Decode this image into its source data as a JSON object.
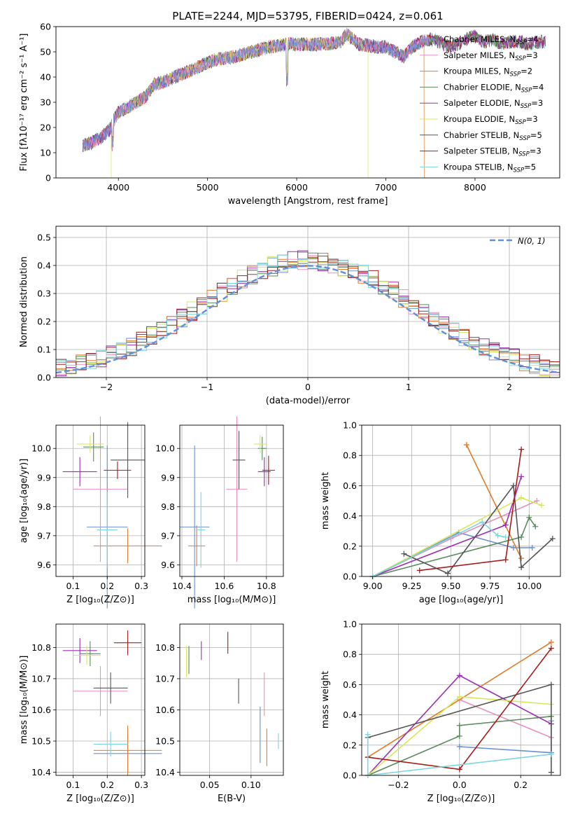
{
  "figure": {
    "title": "PLATE=2244, MJD=53795, FIBERID=0424, z=0.061"
  },
  "colors": {
    "Chabrier MILES": "#6b8fd4",
    "Salpeter MILES": "#e68fc0",
    "Kroupa MILES": "#e07b2a",
    "Chabrier ELODIE": "#5a8a5e",
    "Salpeter ELODIE": "#9a2fb0",
    "Kroupa ELODIE": "#d6e85a",
    "Chabrier STELIB": "#555555",
    "Salpeter STELIB": "#a81b1b",
    "Kroupa STELIB": "#7dd6dc",
    "normal_curve": "#6490d8"
  },
  "chart_data": [
    {
      "id": "spectrum",
      "type": "line",
      "title": "PLATE=2244, MJD=53795, FIBERID=0424, z=0.061",
      "xlabel": "wavelength [Angstrom, rest frame]",
      "ylabel": "Flux [fλ10⁻¹⁷ erg cm⁻² s⁻¹ A⁻¹]",
      "xlim": [
        3300,
        8950
      ],
      "ylim": [
        0,
        60
      ],
      "xticks": [
        4000,
        5000,
        6000,
        7000,
        8000
      ],
      "yticks": [
        0,
        10,
        20,
        30,
        40,
        50,
        60
      ],
      "x": [
        3600,
        3700,
        3800,
        3900,
        3950,
        4000,
        4100,
        4200,
        4300,
        4400,
        4500,
        4700,
        4900,
        5100,
        5300,
        5500,
        5700,
        5900,
        6100,
        6300,
        6500,
        6560,
        6700,
        6900,
        7000,
        7100,
        7200,
        7300,
        7400,
        7500,
        7600,
        7700,
        7800,
        7900,
        8000,
        8100,
        8200,
        8300,
        8400,
        8500,
        8600,
        8700,
        8800
      ],
      "y": [
        13,
        14,
        16,
        19,
        23,
        26,
        28,
        30,
        32,
        37,
        38,
        41,
        44,
        47,
        48,
        50,
        52,
        53,
        53,
        53,
        54,
        57,
        53,
        52,
        52,
        50,
        48,
        52,
        54,
        55,
        54,
        52,
        53,
        55,
        56,
        54,
        55,
        53,
        54,
        54,
        53,
        54,
        54
      ],
      "series_labels": [
        "Chabrier MILES, N",
        "Salpeter MILES, N",
        "Kroupa MILES, N",
        "Chabrier ELODIE, N",
        "Salpeter ELODIE, N",
        "Kroupa ELODIE, N",
        "Chabrier STELIB, N",
        "Salpeter STELIB, N",
        "Kroupa STELIB, N"
      ],
      "nssp": [
        "4",
        "3",
        "2",
        "4",
        "3",
        "3",
        "5",
        "3",
        "5"
      ],
      "legend": "top-right",
      "grid": false
    },
    {
      "id": "residuals",
      "type": "histogram",
      "xlabel": "(data-model)/error",
      "ylabel": "Normed distribution",
      "xlim": [
        -2.5,
        2.5
      ],
      "ylim": [
        0,
        0.54
      ],
      "xticks": [
        -2,
        -1,
        0,
        1,
        2
      ],
      "yticks": [
        0.0,
        0.1,
        0.2,
        0.3,
        0.4,
        0.5
      ],
      "bin_width": 0.1,
      "legend_label": "N(0, 1)",
      "legend": "top-right",
      "grid": true
    },
    {
      "id": "age_vs_Z",
      "type": "scatter",
      "xlabel": "Z [log₁₀(Z/Z⊙)]",
      "ylabel": "age  [log₁₀(age/yr)]",
      "xlim": [
        0.05,
        0.31
      ],
      "ylim": [
        9.56,
        10.08
      ],
      "xticks": [
        0.1,
        0.2,
        0.3
      ],
      "yticks": [
        9.6,
        9.7,
        9.8,
        9.9,
        10.0
      ],
      "points": [
        {
          "model": "Chabrier MILES",
          "x": 0.2,
          "y": 9.73,
          "xerr": 0.06,
          "yerr": 0.28
        },
        {
          "model": "Salpeter MILES",
          "x": 0.18,
          "y": 9.86,
          "xerr": 0.08,
          "yerr": 0.25
        },
        {
          "model": "Kroupa MILES",
          "x": 0.26,
          "y": 9.665,
          "xerr": 0.1,
          "yerr": 0.06
        },
        {
          "model": "Chabrier ELODIE",
          "x": 0.16,
          "y": 10.005,
          "xerr": 0.03,
          "yerr": 0.05
        },
        {
          "model": "Salpeter ELODIE",
          "x": 0.12,
          "y": 9.92,
          "xerr": 0.05,
          "yerr": 0.05
        },
        {
          "model": "Kroupa ELODIE",
          "x": 0.15,
          "y": 10.015,
          "xerr": 0.04,
          "yerr": 0.03
        },
        {
          "model": "Chabrier STELIB",
          "x": 0.26,
          "y": 9.96,
          "xerr": 0.05,
          "yerr": 0.13
        },
        {
          "model": "Salpeter STELIB",
          "x": 0.23,
          "y": 9.925,
          "xerr": 0.04,
          "yerr": 0.03
        },
        {
          "model": "Kroupa STELIB",
          "x": 0.2,
          "y": 9.72,
          "xerr": 0.03,
          "yerr": 0.13
        }
      ],
      "grid": true
    },
    {
      "id": "age_vs_mass",
      "type": "scatter",
      "xlabel": "mass [log₁₀(M/M⊙)]",
      "ylabel": "",
      "xlim": [
        10.39,
        10.88
      ],
      "ylim": [
        9.56,
        10.08
      ],
      "xticks": [
        10.4,
        10.6,
        10.8
      ],
      "yticks": [
        9.6,
        9.7,
        9.8,
        9.9,
        10.0
      ],
      "points": [
        {
          "model": "Chabrier MILES",
          "x": 10.46,
          "y": 9.73,
          "xerr": 0.07,
          "yerr": 0.28
        },
        {
          "model": "Salpeter MILES",
          "x": 10.66,
          "y": 9.86,
          "xerr": 0.05,
          "yerr": 0.25
        },
        {
          "model": "Kroupa MILES",
          "x": 10.47,
          "y": 9.665,
          "xerr": 0.04,
          "yerr": 0.07
        },
        {
          "model": "Chabrier ELODIE",
          "x": 10.78,
          "y": 10.0,
          "xerr": 0.02,
          "yerr": 0.04
        },
        {
          "model": "Salpeter ELODIE",
          "x": 10.79,
          "y": 9.92,
          "xerr": 0.03,
          "yerr": 0.05
        },
        {
          "model": "Kroupa ELODIE",
          "x": 10.77,
          "y": 10.015,
          "xerr": 0.03,
          "yerr": 0.03
        },
        {
          "model": "Chabrier STELIB",
          "x": 10.67,
          "y": 9.96,
          "xerr": 0.03,
          "yerr": 0.1
        },
        {
          "model": "Salpeter STELIB",
          "x": 10.81,
          "y": 9.925,
          "xerr": 0.03,
          "yerr": 0.05
        },
        {
          "model": "Kroupa STELIB",
          "x": 10.49,
          "y": 9.72,
          "xerr": 0.02,
          "yerr": 0.13
        }
      ],
      "grid": true
    },
    {
      "id": "weight_vs_age",
      "type": "line",
      "xlabel": "age  [log₁₀(age/yr)]",
      "ylabel": "mass weight",
      "xlim": [
        8.93,
        10.2
      ],
      "ylim": [
        0,
        1.0
      ],
      "xticks": [
        9.0,
        9.25,
        9.5,
        9.75,
        10.0
      ],
      "yticks": [
        0.0,
        0.2,
        0.4,
        0.6,
        0.8,
        1.0
      ],
      "series": [
        {
          "model": "Chabrier MILES",
          "x": [
            9.0,
            9.55,
            9.9,
            10.02
          ],
          "y": [
            0.0,
            0.29,
            0.19,
            0.19
          ]
        },
        {
          "model": "Salpeter MILES",
          "x": [
            9.0,
            9.5,
            10.05
          ],
          "y": [
            0.0,
            0.25,
            0.5
          ]
        },
        {
          "model": "Kroupa MILES",
          "x": [
            9.6,
            9.95
          ],
          "y": [
            0.87,
            0.12
          ]
        },
        {
          "model": "Chabrier ELODIE",
          "x": [
            9.0,
            9.95,
            10.0,
            10.04
          ],
          "y": [
            0.0,
            0.26,
            0.39,
            0.33
          ]
        },
        {
          "model": "Salpeter ELODIE",
          "x": [
            9.0,
            9.85,
            9.95
          ],
          "y": [
            0.0,
            0.34,
            0.66
          ]
        },
        {
          "model": "Kroupa ELODIE",
          "x": [
            9.0,
            9.95,
            10.08
          ],
          "y": [
            0.0,
            0.52,
            0.47
          ]
        },
        {
          "model": "Chabrier STELIB",
          "x": [
            9.2,
            9.48,
            9.9,
            9.95,
            10.15
          ],
          "y": [
            0.15,
            0.02,
            0.6,
            0.06,
            0.25
          ]
        },
        {
          "model": "Salpeter STELIB",
          "x": [
            9.3,
            9.85,
            9.95
          ],
          "y": [
            0.04,
            0.11,
            0.84
          ]
        },
        {
          "model": "Kroupa STELIB",
          "x": [
            9.0,
            9.7,
            9.8,
            9.85
          ],
          "y": [
            0.0,
            0.36,
            0.27,
            0.26
          ]
        }
      ],
      "grid": true
    },
    {
      "id": "mass_vs_Z",
      "type": "scatter",
      "xlabel": "Z [log₁₀(Z/Z⊙)]",
      "ylabel": "mass [log₁₀(M/M⊙)]",
      "xlim": [
        0.05,
        0.31
      ],
      "ylim": [
        10.39,
        10.875
      ],
      "xticks": [
        0.1,
        0.2,
        0.3
      ],
      "yticks": [
        10.4,
        10.5,
        10.6,
        10.7,
        10.8
      ],
      "points": [
        {
          "model": "Chabrier MILES",
          "x": 0.26,
          "y": 10.46,
          "xerr": 0.1,
          "yerr": 0.06
        },
        {
          "model": "Salpeter MILES",
          "x": 0.18,
          "y": 10.66,
          "xerr": 0.08,
          "yerr": 0.08
        },
        {
          "model": "Kroupa MILES",
          "x": 0.26,
          "y": 10.47,
          "xerr": 0.1,
          "yerr": 0.08
        },
        {
          "model": "Chabrier ELODIE",
          "x": 0.15,
          "y": 10.78,
          "xerr": 0.03,
          "yerr": 0.04
        },
        {
          "model": "Salpeter ELODIE",
          "x": 0.12,
          "y": 10.79,
          "xerr": 0.05,
          "yerr": 0.04
        },
        {
          "model": "Kroupa ELODIE",
          "x": 0.14,
          "y": 10.775,
          "xerr": 0.04,
          "yerr": 0.03
        },
        {
          "model": "Chabrier STELIB",
          "x": 0.21,
          "y": 10.67,
          "xerr": 0.05,
          "yerr": 0.05
        },
        {
          "model": "Salpeter STELIB",
          "x": 0.26,
          "y": 10.815,
          "xerr": 0.04,
          "yerr": 0.04
        },
        {
          "model": "Kroupa STELIB",
          "x": 0.21,
          "y": 10.49,
          "xerr": 0.05,
          "yerr": 0.04
        }
      ],
      "grid": true
    },
    {
      "id": "mass_vs_ebv",
      "type": "scatter",
      "xlabel": "E(B-V)",
      "ylabel": "",
      "xlim": [
        0.014,
        0.139
      ],
      "ylim": [
        10.39,
        10.875
      ],
      "xticks": [
        0.05,
        0.1
      ],
      "yticks": [
        10.4,
        10.5,
        10.6,
        10.7,
        10.8
      ],
      "points": [
        {
          "model": "Chabrier MILES",
          "x": 0.111,
          "y": 10.52,
          "yerr": 0.09
        },
        {
          "model": "Salpeter MILES",
          "x": 0.116,
          "y": 10.65,
          "yerr": 0.07
        },
        {
          "model": "Kroupa MILES",
          "x": 0.119,
          "y": 10.48,
          "yerr": 0.06
        },
        {
          "model": "Chabrier ELODIE",
          "x": 0.025,
          "y": 10.76,
          "yerr": 0.045
        },
        {
          "model": "Salpeter ELODIE",
          "x": 0.04,
          "y": 10.79,
          "yerr": 0.03
        },
        {
          "model": "Kroupa ELODIE",
          "x": 0.022,
          "y": 10.755,
          "yerr": 0.05
        },
        {
          "model": "Chabrier STELIB",
          "x": 0.085,
          "y": 10.66,
          "yerr": 0.04
        },
        {
          "model": "Salpeter STELIB",
          "x": 0.072,
          "y": 10.815,
          "yerr": 0.035
        },
        {
          "model": "Kroupa STELIB",
          "x": 0.133,
          "y": 10.5,
          "yerr": 0.025
        }
      ],
      "grid": true
    },
    {
      "id": "weight_vs_Z",
      "type": "line",
      "xlabel": "Z [log₁₀(Z/Z⊙)]",
      "ylabel": "mass weight",
      "xlim": [
        -0.32,
        0.33
      ],
      "ylim": [
        0,
        1.0
      ],
      "xticks": [
        -0.2,
        0.0,
        0.2
      ],
      "yticks": [
        0.0,
        0.2,
        0.4,
        0.6,
        0.8,
        1.0
      ],
      "series": [
        {
          "model": "Chabrier MILES",
          "x": [
            0.0,
            0.3,
            0.3
          ],
          "y": [
            0.19,
            0.15,
            0.36
          ]
        },
        {
          "model": "Salpeter MILES",
          "x": [
            0.0,
            0.3
          ],
          "y": [
            0.5,
            0.25
          ]
        },
        {
          "model": "Kroupa MILES",
          "x": [
            -0.3,
            0.3
          ],
          "y": [
            0.12,
            0.88
          ]
        },
        {
          "model": "Chabrier ELODIE",
          "x": [
            -0.3,
            0.0,
            0.0,
            0.3
          ],
          "y": [
            0.0,
            0.26,
            0.33,
            0.39
          ]
        },
        {
          "model": "Salpeter ELODIE",
          "x": [
            -0.3,
            0.0,
            0.3
          ],
          "y": [
            0.0,
            0.66,
            0.34
          ]
        },
        {
          "model": "Kroupa ELODIE",
          "x": [
            -0.3,
            0.0,
            0.3
          ],
          "y": [
            0.0,
            0.52,
            0.47
          ]
        },
        {
          "model": "Chabrier STELIB",
          "x": [
            -0.3,
            0.3,
            0.3
          ],
          "y": [
            0.25,
            0.6,
            0.02
          ]
        },
        {
          "model": "Salpeter STELIB",
          "x": [
            -0.3,
            0.0,
            0.3
          ],
          "y": [
            0.12,
            0.04,
            0.84
          ]
        },
        {
          "model": "Kroupa STELIB",
          "x": [
            -0.3,
            -0.3,
            0.3
          ],
          "y": [
            0.27,
            0.0,
            0.14
          ]
        }
      ],
      "grid": true
    }
  ]
}
